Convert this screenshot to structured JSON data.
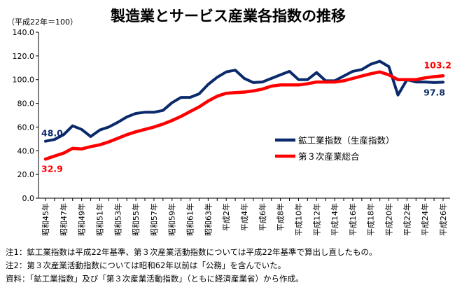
{
  "title": "製造業とサービス産業各指数の推移",
  "unit_label": "（平成22年＝100）",
  "chart_data": {
    "type": "line",
    "title": "製造業とサービス産業各指数の推移",
    "ylabel": "（平成22年＝100）",
    "ylim": [
      0,
      140
    ],
    "yticks": [
      0,
      20,
      40,
      60,
      80,
      100,
      120,
      140
    ],
    "ytick_labels": [
      "0.0",
      "20.0",
      "40.0",
      "60.0",
      "80.0",
      "100.0",
      "120.0",
      "140.0"
    ],
    "grid": false,
    "legend_position": "center-right",
    "x": [
      "昭和45年",
      "昭和46年",
      "昭和47年",
      "昭和48年",
      "昭和49年",
      "昭和50年",
      "昭和51年",
      "昭和52年",
      "昭和53年",
      "昭和54年",
      "昭和55年",
      "昭和56年",
      "昭和57年",
      "昭和58年",
      "昭和59年",
      "昭和60年",
      "昭和61年",
      "昭和62年",
      "昭和63年",
      "平成元年",
      "平成2年",
      "平成3年",
      "平成4年",
      "平成5年",
      "平成6年",
      "平成7年",
      "平成8年",
      "平成9年",
      "平成10年",
      "平成11年",
      "平成12年",
      "平成13年",
      "平成14年",
      "平成15年",
      "平成16年",
      "平成17年",
      "平成18年",
      "平成19年",
      "平成20年",
      "平成21年",
      "平成22年",
      "平成23年",
      "平成24年",
      "平成25年",
      "平成26年"
    ],
    "xtick_labels": [
      "昭和45年",
      "昭和47年",
      "昭和49年",
      "昭和51年",
      "昭和53年",
      "昭和55年",
      "昭和57年",
      "昭和59年",
      "昭和61年",
      "昭和63年",
      "平成2年",
      "平成4年",
      "平成6年",
      "平成8年",
      "平成10年",
      "平成12年",
      "平成14年",
      "平成16年",
      "平成18年",
      "平成20年",
      "平成22年",
      "平成24年",
      "平成26年"
    ],
    "series": [
      {
        "name": "鉱工業指数（生産指数）",
        "color": "#0b2a6b",
        "values": [
          48.0,
          49.5,
          53.5,
          61.0,
          58.0,
          52.0,
          57.5,
          60.0,
          64.0,
          68.5,
          71.5,
          72.5,
          72.5,
          74.0,
          80.5,
          85.0,
          85.0,
          88.0,
          96.0,
          102.0,
          106.5,
          108.0,
          101.0,
          97.5,
          98.0,
          101.0,
          104.0,
          107.0,
          100.0,
          100.0,
          106.0,
          99.0,
          99.0,
          103.0,
          107.0,
          108.5,
          113.0,
          115.5,
          111.0,
          87.0,
          100.0,
          98.0,
          98.0,
          97.5,
          97.8
        ],
        "end_labels": {
          "first": "48.0",
          "last": "97.8"
        }
      },
      {
        "name": "第３次産業総合",
        "color": "#ff0000",
        "values": [
          32.9,
          35.5,
          38.0,
          42.0,
          41.5,
          43.5,
          45.0,
          47.5,
          50.5,
          53.5,
          56.0,
          58.0,
          60.0,
          62.5,
          65.5,
          69.0,
          73.0,
          77.0,
          82.0,
          86.0,
          88.5,
          89.0,
          89.5,
          90.5,
          92.0,
          94.5,
          95.5,
          95.5,
          95.5,
          96.5,
          98.0,
          98.0,
          98.0,
          99.0,
          101.0,
          103.0,
          105.0,
          106.5,
          104.0,
          100.0,
          100.0,
          100.0,
          101.5,
          102.5,
          103.2
        ],
        "end_labels": {
          "first": "32.9",
          "last": "103.2"
        }
      }
    ]
  },
  "notes": [
    "注1：鉱工業指数は平成22年基準、第３次産業活動指数については平成22年基準で算出し直したもの。",
    "注2：第３次産業活動指数については昭和62年以前は「公務」を含んでいた。",
    "資料：「鉱工業指数」及び「第３次産業活動指数」（ともに経済産業省）から作成。"
  ]
}
